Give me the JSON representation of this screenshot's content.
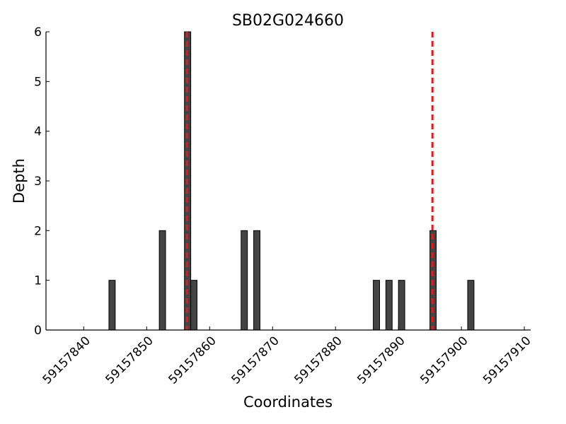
{
  "chart_data": {
    "type": "bar",
    "title": "SB02G024660",
    "xlabel": "Coordinates",
    "ylabel": "Depth",
    "x": [
      59157844,
      59157852,
      59157856,
      59157857,
      59157865,
      59157867,
      59157886,
      59157888,
      59157890,
      59157895,
      59157901
    ],
    "values": [
      1,
      2,
      6,
      1,
      2,
      2,
      1,
      1,
      1,
      2,
      1
    ],
    "color": "#444444",
    "xlim": [
      59157834,
      59157911
    ],
    "xticks": [
      59157840,
      59157850,
      59157860,
      59157870,
      59157880,
      59157890,
      59157900,
      59157910
    ],
    "ylim": [
      0,
      6
    ],
    "yticks": [
      0,
      1,
      2,
      3,
      4,
      5,
      6
    ],
    "vlines": [
      59157856.4,
      59157895.4
    ],
    "vline_color": "#e31a1c",
    "grid": false
  }
}
